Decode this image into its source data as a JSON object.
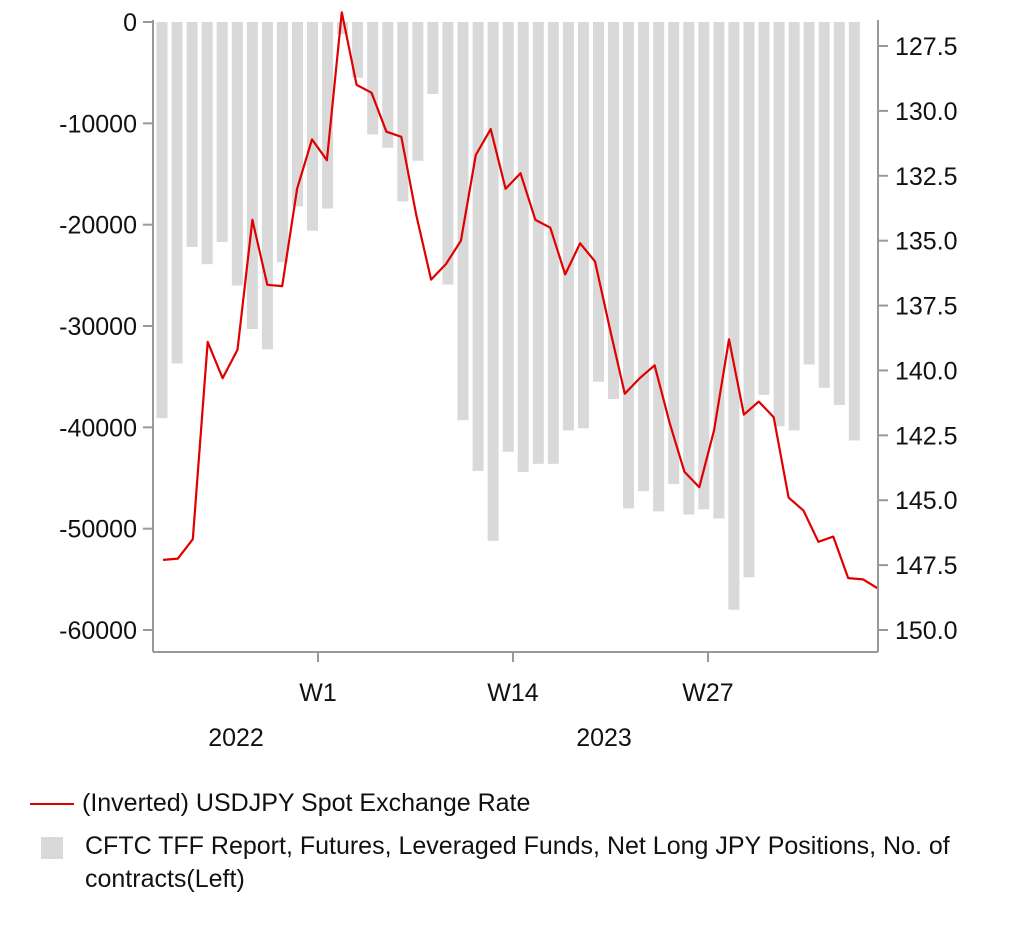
{
  "chart_data": {
    "type": "bar+line",
    "title": "",
    "x_labels": [
      "W1",
      "W14",
      "W27"
    ],
    "year_labels": [
      "2022",
      "2023"
    ],
    "left_axis": {
      "ylim": [
        -60000,
        0
      ],
      "ticks": [
        "0",
        "-10000",
        "-20000",
        "-30000",
        "-40000",
        "-50000",
        "-60000"
      ]
    },
    "right_axis": {
      "ylim": [
        150.0,
        127.5
      ],
      "inverted": true,
      "ticks": [
        "127.5",
        "130.0",
        "132.5",
        "135.0",
        "137.5",
        "140.0",
        "142.5",
        "145.0",
        "147.5",
        "150.0"
      ]
    },
    "bars": {
      "name": "CFTC TFF Report, Futures, Leveraged Funds, Net Long JPY Positions, No. of contracts(Left)",
      "color": "#d9d9d9",
      "values": [
        -39100,
        -33700,
        -22200,
        -23900,
        -21700,
        -26000,
        -30300,
        -32300,
        -23700,
        -18200,
        -20600,
        -18400,
        -1200,
        -5500,
        -11100,
        -12400,
        -17700,
        -13700,
        -7100,
        -25900,
        -39300,
        -44300,
        -51200,
        -42400,
        -44400,
        -43600,
        -43600,
        -40300,
        -40100,
        -35500,
        -37200,
        -48000,
        -46300,
        -48300,
        -45600,
        -48600,
        -48100,
        -49000,
        -58000,
        -54800,
        -36800,
        -39900,
        -40300,
        -33800,
        -36100,
        -37800,
        -41300
      ]
    },
    "line": {
      "name": "(Inverted) USDJPY Spot Exchange Rate",
      "color": "#e00000",
      "values": [
        147.3,
        147.25,
        146.5,
        138.9,
        140.3,
        139.2,
        134.2,
        136.7,
        136.75,
        133.0,
        131.1,
        131.9,
        126.2,
        129.0,
        129.3,
        130.8,
        131.0,
        134.0,
        136.5,
        135.9,
        135.0,
        131.7,
        130.7,
        133.0,
        132.4,
        134.2,
        134.5,
        136.3,
        135.1,
        135.8,
        138.4,
        140.9,
        140.3,
        139.8,
        142.0,
        143.9,
        144.5,
        142.3,
        138.8,
        141.7,
        141.2,
        141.8,
        144.9,
        145.4,
        146.6,
        146.4,
        148.0,
        148.05,
        148.4
      ]
    }
  },
  "legend": {
    "line_label": "(Inverted) USDJPY Spot Exchange Rate",
    "bar_label": "CFTC TFF Report, Futures, Leveraged Funds, Net Long JPY Positions, No. of contracts(Left)"
  }
}
